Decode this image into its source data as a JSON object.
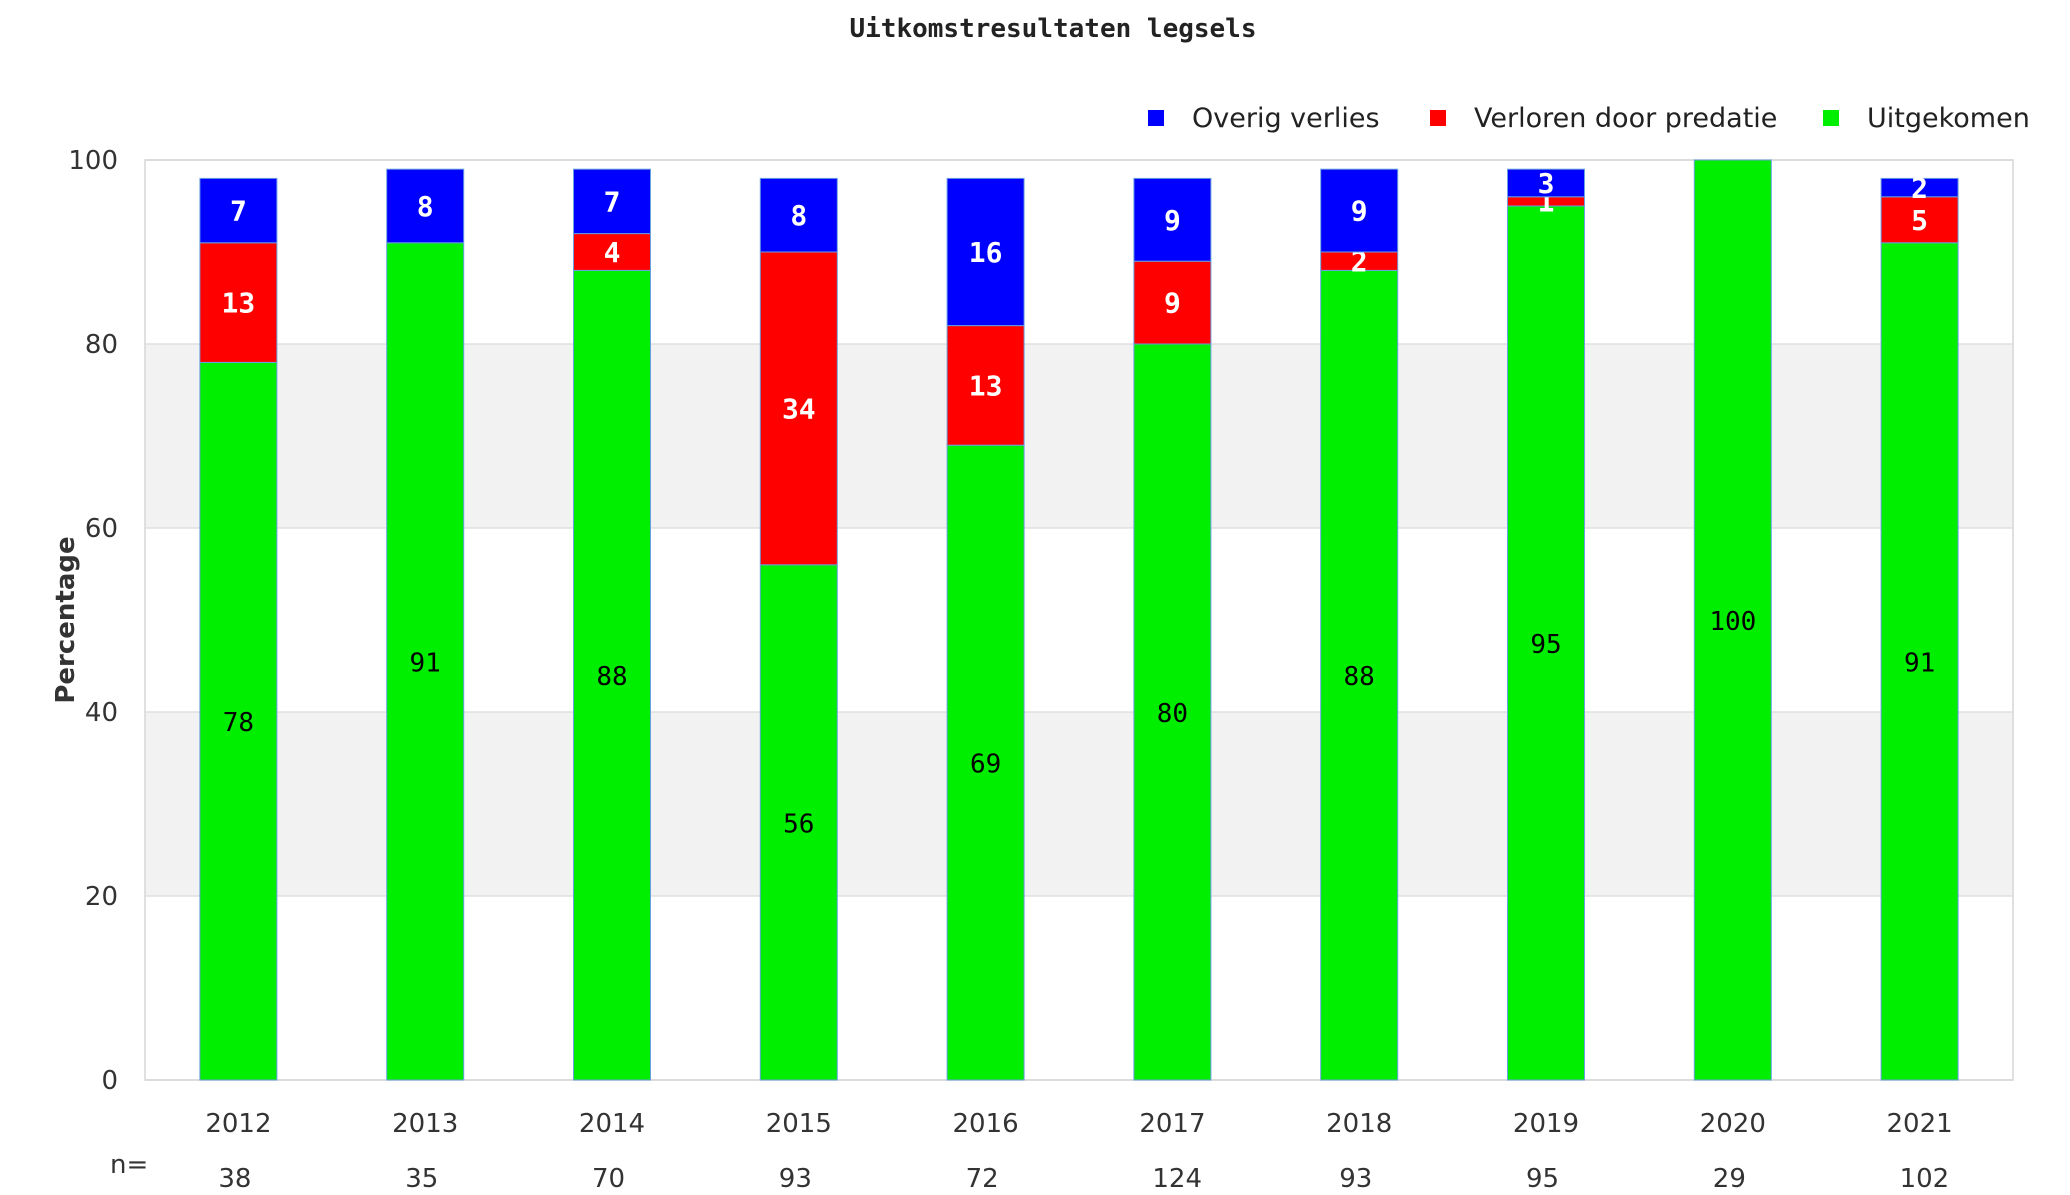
{
  "chart_data": {
    "type": "bar",
    "stacked": true,
    "title": "Uitkomstresultaten legsels",
    "ylabel": "Percentage",
    "xlabel": "",
    "ylim": [
      0,
      100
    ],
    "yticks": [
      0,
      20,
      40,
      60,
      80,
      100
    ],
    "grid": "alternating horizontal bands",
    "legend_position": "top-right",
    "categories": [
      "2012",
      "2013",
      "2014",
      "2015",
      "2016",
      "2017",
      "2018",
      "2019",
      "2020",
      "2021"
    ],
    "series": [
      {
        "name": "Uitgekomen",
        "color": "#00ee00",
        "values": [
          78,
          91,
          88,
          56,
          69,
          80,
          88,
          95,
          100,
          91
        ],
        "shown_labels": [
          "78",
          "91",
          "88",
          "56",
          "69",
          "80",
          "88",
          "95",
          "100",
          "91"
        ]
      },
      {
        "name": "Verloren door predatie",
        "color": "#ff0000",
        "values": [
          13,
          0,
          4,
          34,
          13,
          9,
          2,
          1,
          0,
          5
        ],
        "shown_labels": [
          "13",
          "",
          "4",
          "34",
          "13",
          "9",
          "2",
          "1",
          "",
          "5"
        ]
      },
      {
        "name": "Overig verlies",
        "color": "#0000ff",
        "values": [
          7,
          8,
          7,
          8,
          16,
          9,
          9,
          3,
          0,
          2
        ],
        "shown_labels": [
          "7",
          "8",
          "7",
          "8",
          "16",
          "9",
          "9",
          "3",
          "",
          "2"
        ]
      }
    ],
    "n_label": "n=",
    "n_values": [
      "38",
      "35",
      "70",
      "93",
      "72",
      "124",
      "93",
      "95",
      "29",
      "102"
    ]
  }
}
